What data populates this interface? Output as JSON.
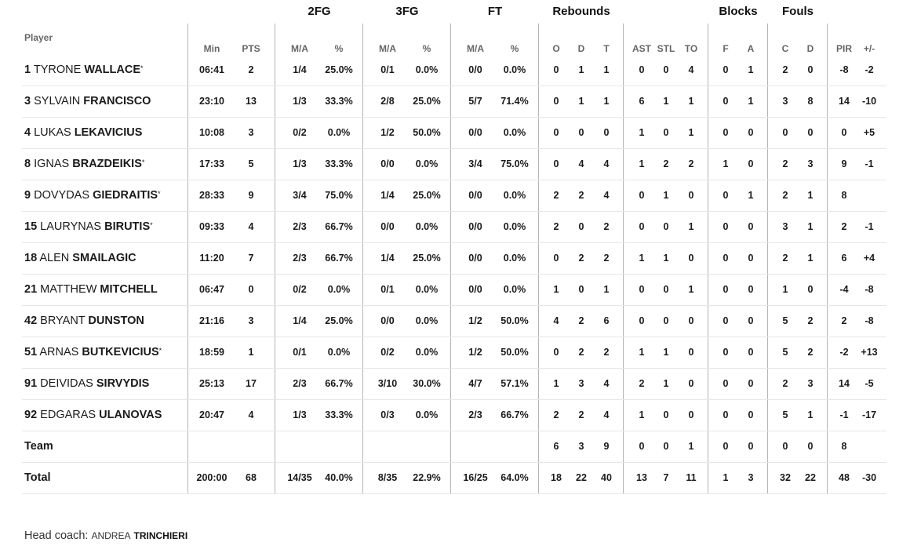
{
  "groups": [
    "2FG",
    "3FG",
    "FT",
    "Rebounds",
    "Blocks",
    "Fouls"
  ],
  "player_header": "Player",
  "column_headers": [
    "Min",
    "PTS",
    "M/A",
    "%",
    "M/A",
    "%",
    "M/A",
    "%",
    "O",
    "D",
    "T",
    "AST",
    "STL",
    "TO",
    "F",
    "A",
    "C",
    "D",
    "PIR",
    "+/-"
  ],
  "players": [
    {
      "num": "1",
      "first": "TYRONE",
      "last": "WALLACE",
      "starter": true,
      "stats": [
        "06:41",
        "2",
        "1/4",
        "25.0%",
        "0/1",
        "0.0%",
        "0/0",
        "0.0%",
        "0",
        "1",
        "1",
        "0",
        "0",
        "4",
        "0",
        "1",
        "2",
        "0",
        "-8",
        "-2"
      ]
    },
    {
      "num": "3",
      "first": "SYLVAIN",
      "last": "FRANCISCO",
      "starter": false,
      "stats": [
        "23:10",
        "13",
        "1/3",
        "33.3%",
        "2/8",
        "25.0%",
        "5/7",
        "71.4%",
        "0",
        "1",
        "1",
        "6",
        "1",
        "1",
        "0",
        "1",
        "3",
        "8",
        "14",
        "-10"
      ]
    },
    {
      "num": "4",
      "first": "LUKAS",
      "last": "LEKAVICIUS",
      "starter": false,
      "stats": [
        "10:08",
        "3",
        "0/2",
        "0.0%",
        "1/2",
        "50.0%",
        "0/0",
        "0.0%",
        "0",
        "0",
        "0",
        "1",
        "0",
        "1",
        "0",
        "0",
        "0",
        "0",
        "0",
        "+5"
      ]
    },
    {
      "num": "8",
      "first": "IGNAS",
      "last": "BRAZDEIKIS",
      "starter": true,
      "stats": [
        "17:33",
        "5",
        "1/3",
        "33.3%",
        "0/0",
        "0.0%",
        "3/4",
        "75.0%",
        "0",
        "4",
        "4",
        "1",
        "2",
        "2",
        "1",
        "0",
        "2",
        "3",
        "9",
        "-1"
      ]
    },
    {
      "num": "9",
      "first": "DOVYDAS",
      "last": "GIEDRAITIS",
      "starter": true,
      "stats": [
        "28:33",
        "9",
        "3/4",
        "75.0%",
        "1/4",
        "25.0%",
        "0/0",
        "0.0%",
        "2",
        "2",
        "4",
        "0",
        "1",
        "0",
        "0",
        "1",
        "2",
        "1",
        "8",
        ""
      ]
    },
    {
      "num": "15",
      "first": "LAURYNAS",
      "last": "BIRUTIS",
      "starter": true,
      "stats": [
        "09:33",
        "4",
        "2/3",
        "66.7%",
        "0/0",
        "0.0%",
        "0/0",
        "0.0%",
        "2",
        "0",
        "2",
        "0",
        "0",
        "1",
        "0",
        "0",
        "3",
        "1",
        "2",
        "-1"
      ]
    },
    {
      "num": "18",
      "first": "ALEN",
      "last": "SMAILAGIC",
      "starter": false,
      "stats": [
        "11:20",
        "7",
        "2/3",
        "66.7%",
        "1/4",
        "25.0%",
        "0/0",
        "0.0%",
        "0",
        "2",
        "2",
        "1",
        "1",
        "0",
        "0",
        "0",
        "2",
        "1",
        "6",
        "+4"
      ]
    },
    {
      "num": "21",
      "first": "MATTHEW",
      "last": "MITCHELL",
      "starter": false,
      "stats": [
        "06:47",
        "0",
        "0/2",
        "0.0%",
        "0/1",
        "0.0%",
        "0/0",
        "0.0%",
        "1",
        "0",
        "1",
        "0",
        "0",
        "1",
        "0",
        "0",
        "1",
        "0",
        "-4",
        "-8"
      ]
    },
    {
      "num": "42",
      "first": "BRYANT",
      "last": "DUNSTON",
      "starter": false,
      "stats": [
        "21:16",
        "3",
        "1/4",
        "25.0%",
        "0/0",
        "0.0%",
        "1/2",
        "50.0%",
        "4",
        "2",
        "6",
        "0",
        "0",
        "0",
        "0",
        "0",
        "5",
        "2",
        "2",
        "-8"
      ]
    },
    {
      "num": "51",
      "first": "ARNAS",
      "last": "BUTKEVICIUS",
      "starter": true,
      "stats": [
        "18:59",
        "1",
        "0/1",
        "0.0%",
        "0/2",
        "0.0%",
        "1/2",
        "50.0%",
        "0",
        "2",
        "2",
        "1",
        "1",
        "0",
        "0",
        "0",
        "5",
        "2",
        "-2",
        "+13"
      ]
    },
    {
      "num": "91",
      "first": "DEIVIDAS",
      "last": "SIRVYDIS",
      "starter": false,
      "stats": [
        "25:13",
        "17",
        "2/3",
        "66.7%",
        "3/10",
        "30.0%",
        "4/7",
        "57.1%",
        "1",
        "3",
        "4",
        "2",
        "1",
        "0",
        "0",
        "0",
        "2",
        "3",
        "14",
        "-5"
      ]
    },
    {
      "num": "92",
      "first": "EDGARAS",
      "last": "ULANOVAS",
      "starter": false,
      "stats": [
        "20:47",
        "4",
        "1/3",
        "33.3%",
        "0/3",
        "0.0%",
        "2/3",
        "66.7%",
        "2",
        "2",
        "4",
        "1",
        "0",
        "0",
        "0",
        "0",
        "5",
        "1",
        "-1",
        "-17"
      ]
    }
  ],
  "team": {
    "label": "Team",
    "stats": [
      "",
      "",
      "",
      "",
      "",
      "",
      "",
      "",
      "6",
      "3",
      "9",
      "0",
      "0",
      "1",
      "0",
      "0",
      "0",
      "0",
      "8",
      ""
    ]
  },
  "total": {
    "label": "Total",
    "stats": [
      "200:00",
      "68",
      "14/35",
      "40.0%",
      "8/35",
      "22.9%",
      "16/25",
      "64.0%",
      "18",
      "22",
      "40",
      "13",
      "7",
      "11",
      "1",
      "3",
      "32",
      "22",
      "48",
      "-30"
    ]
  },
  "coach": {
    "prefix": "Head coach:",
    "first": "ANDREA",
    "last": "TRINCHIERI"
  }
}
